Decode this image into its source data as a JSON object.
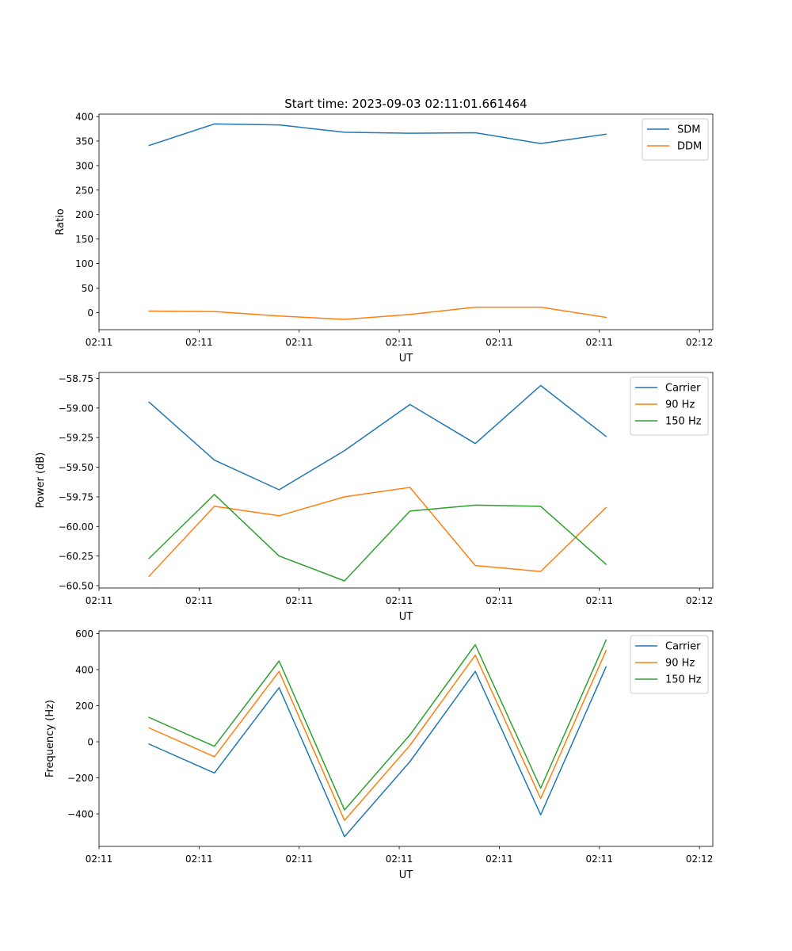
{
  "figure_title": "Start time: 2023-09-03 02:11:01.661464",
  "colors": {
    "blue": "#1f77b4",
    "orange": "#ff7f0e",
    "green": "#2ca02c"
  },
  "chart_data": [
    {
      "type": "line",
      "title": "Start time: 2023-09-03 02:11:01.661464",
      "xlabel": "UT",
      "ylabel": "Ratio",
      "xlim": [
        0,
        9.2
      ],
      "x": [
        0.75,
        1.73,
        2.7,
        3.68,
        4.66,
        5.64,
        6.62,
        7.6
      ],
      "xticks": [
        0,
        1.5,
        3.0,
        4.5,
        6.0,
        7.5,
        9.0
      ],
      "xtick_labels": [
        "02:11",
        "02:11",
        "02:11",
        "02:11",
        "02:11",
        "02:11",
        "02:12"
      ],
      "ylim": [
        -35,
        405
      ],
      "yticks": [
        0,
        50,
        100,
        150,
        200,
        250,
        300,
        350,
        400
      ],
      "ytick_labels": [
        "0",
        "50",
        "100",
        "150",
        "200",
        "250",
        "300",
        "350",
        "400"
      ],
      "legend": "top-right",
      "series": [
        {
          "name": "SDM",
          "color": "#1f77b4",
          "values": [
            341,
            385,
            383,
            368,
            366,
            367,
            345,
            364
          ]
        },
        {
          "name": "DDM",
          "color": "#ff7f0e",
          "values": [
            3,
            2,
            -7,
            -14,
            -4,
            11,
            11,
            -10
          ]
        }
      ]
    },
    {
      "type": "line",
      "xlabel": "UT",
      "ylabel": "Power (dB)",
      "xlim": [
        0,
        9.2
      ],
      "x": [
        0.75,
        1.73,
        2.7,
        3.68,
        4.66,
        5.64,
        6.62,
        7.6
      ],
      "xticks": [
        0,
        1.5,
        3.0,
        4.5,
        6.0,
        7.5,
        9.0
      ],
      "xtick_labels": [
        "02:11",
        "02:11",
        "02:11",
        "02:11",
        "02:11",
        "02:11",
        "02:12"
      ],
      "ylim": [
        -60.52,
        -58.7
      ],
      "yticks": [
        -60.5,
        -60.25,
        -60.0,
        -59.75,
        -59.5,
        -59.25,
        -59.0,
        -58.75
      ],
      "ytick_labels": [
        "−60.50",
        "−60.25",
        "−60.00",
        "−59.75",
        "−59.50",
        "−59.25",
        "−59.00",
        "−58.75"
      ],
      "legend": "top-right",
      "series": [
        {
          "name": "Carrier",
          "color": "#1f77b4",
          "values": [
            -58.95,
            -59.44,
            -59.69,
            -59.36,
            -58.97,
            -59.3,
            -58.81,
            -59.24
          ]
        },
        {
          "name": "90 Hz",
          "color": "#ff7f0e",
          "values": [
            -60.42,
            -59.83,
            -59.91,
            -59.75,
            -59.67,
            -60.33,
            -60.38,
            -59.84
          ]
        },
        {
          "name": "150 Hz",
          "color": "#2ca02c",
          "values": [
            -60.27,
            -59.73,
            -60.25,
            -60.46,
            -59.87,
            -59.82,
            -59.83,
            -60.32
          ]
        }
      ]
    },
    {
      "type": "line",
      "xlabel": "UT",
      "ylabel": "Frequency (Hz)",
      "xlim": [
        0,
        9.2
      ],
      "x": [
        0.75,
        1.73,
        2.7,
        3.68,
        4.66,
        5.64,
        6.62,
        7.6
      ],
      "xticks": [
        0,
        1.5,
        3.0,
        4.5,
        6.0,
        7.5,
        9.0
      ],
      "xtick_labels": [
        "02:11",
        "02:11",
        "02:11",
        "02:11",
        "02:11",
        "02:11",
        "02:12"
      ],
      "ylim": [
        -580,
        615
      ],
      "yticks": [
        -400,
        -200,
        0,
        200,
        400,
        600
      ],
      "ytick_labels": [
        "−400",
        "−200",
        "0",
        "200",
        "400",
        "600"
      ],
      "legend": "top-right",
      "series": [
        {
          "name": "Carrier",
          "color": "#1f77b4",
          "values": [
            -13,
            -173,
            300,
            -526,
            -110,
            390,
            -405,
            415
          ]
        },
        {
          "name": "90 Hz",
          "color": "#ff7f0e",
          "values": [
            77,
            -83,
            390,
            -436,
            -20,
            480,
            -315,
            505
          ]
        },
        {
          "name": "150 Hz",
          "color": "#2ca02c",
          "values": [
            135,
            -25,
            448,
            -378,
            38,
            538,
            -257,
            563
          ]
        }
      ]
    }
  ]
}
